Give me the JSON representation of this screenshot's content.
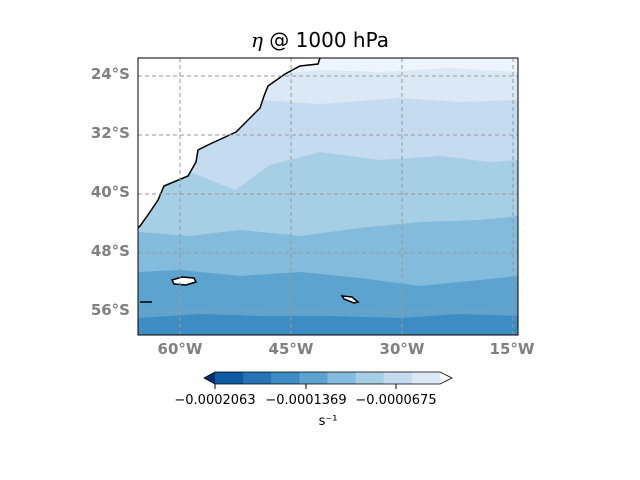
{
  "title": {
    "symbol": "η",
    "rest": " @ 1000 hPa"
  },
  "map": {
    "lat_labels": [
      "24°S",
      "32°S",
      "40°S",
      "48°S",
      "56°S"
    ],
    "lon_labels": [
      "60°W",
      "45°W",
      "30°W",
      "15°W"
    ],
    "land_color": "#ffffff",
    "coast_color": "#000000",
    "grid_color": "#9a9a9a"
  },
  "colorbar": {
    "colors": [
      "#08306b",
      "#0e59a3",
      "#2474b7",
      "#3d8dc4",
      "#5da3d0",
      "#82bbdb",
      "#a6cee4",
      "#c5dbef",
      "#dbe9f6",
      "#f7fbff"
    ],
    "tick_labels": [
      "−0.0002063",
      "−0.0001369",
      "−0.0000675"
    ],
    "units": "s⁻¹"
  }
}
